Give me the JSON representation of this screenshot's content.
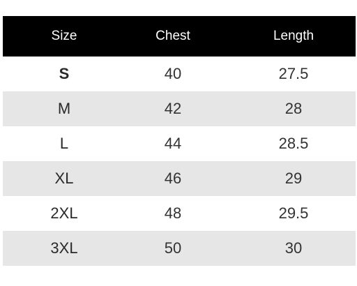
{
  "table": {
    "headers": {
      "size": "Size",
      "chest": "Chest",
      "length": "Length"
    },
    "rows": [
      {
        "size": "S",
        "chest": "40",
        "length": "27.5"
      },
      {
        "size": "M",
        "chest": "42",
        "length": "28"
      },
      {
        "size": "L",
        "chest": "44",
        "length": "28.5"
      },
      {
        "size": "XL",
        "chest": "46",
        "length": "29"
      },
      {
        "size": "2XL",
        "chest": "48",
        "length": "29.5"
      },
      {
        "size": "3XL",
        "chest": "50",
        "length": "30"
      }
    ]
  },
  "colors": {
    "header_background": "#000000",
    "header_text": "#ffffff",
    "row_alt_background": "#e6e6e6",
    "row_background": "#ffffff",
    "cell_text": "#333333"
  }
}
